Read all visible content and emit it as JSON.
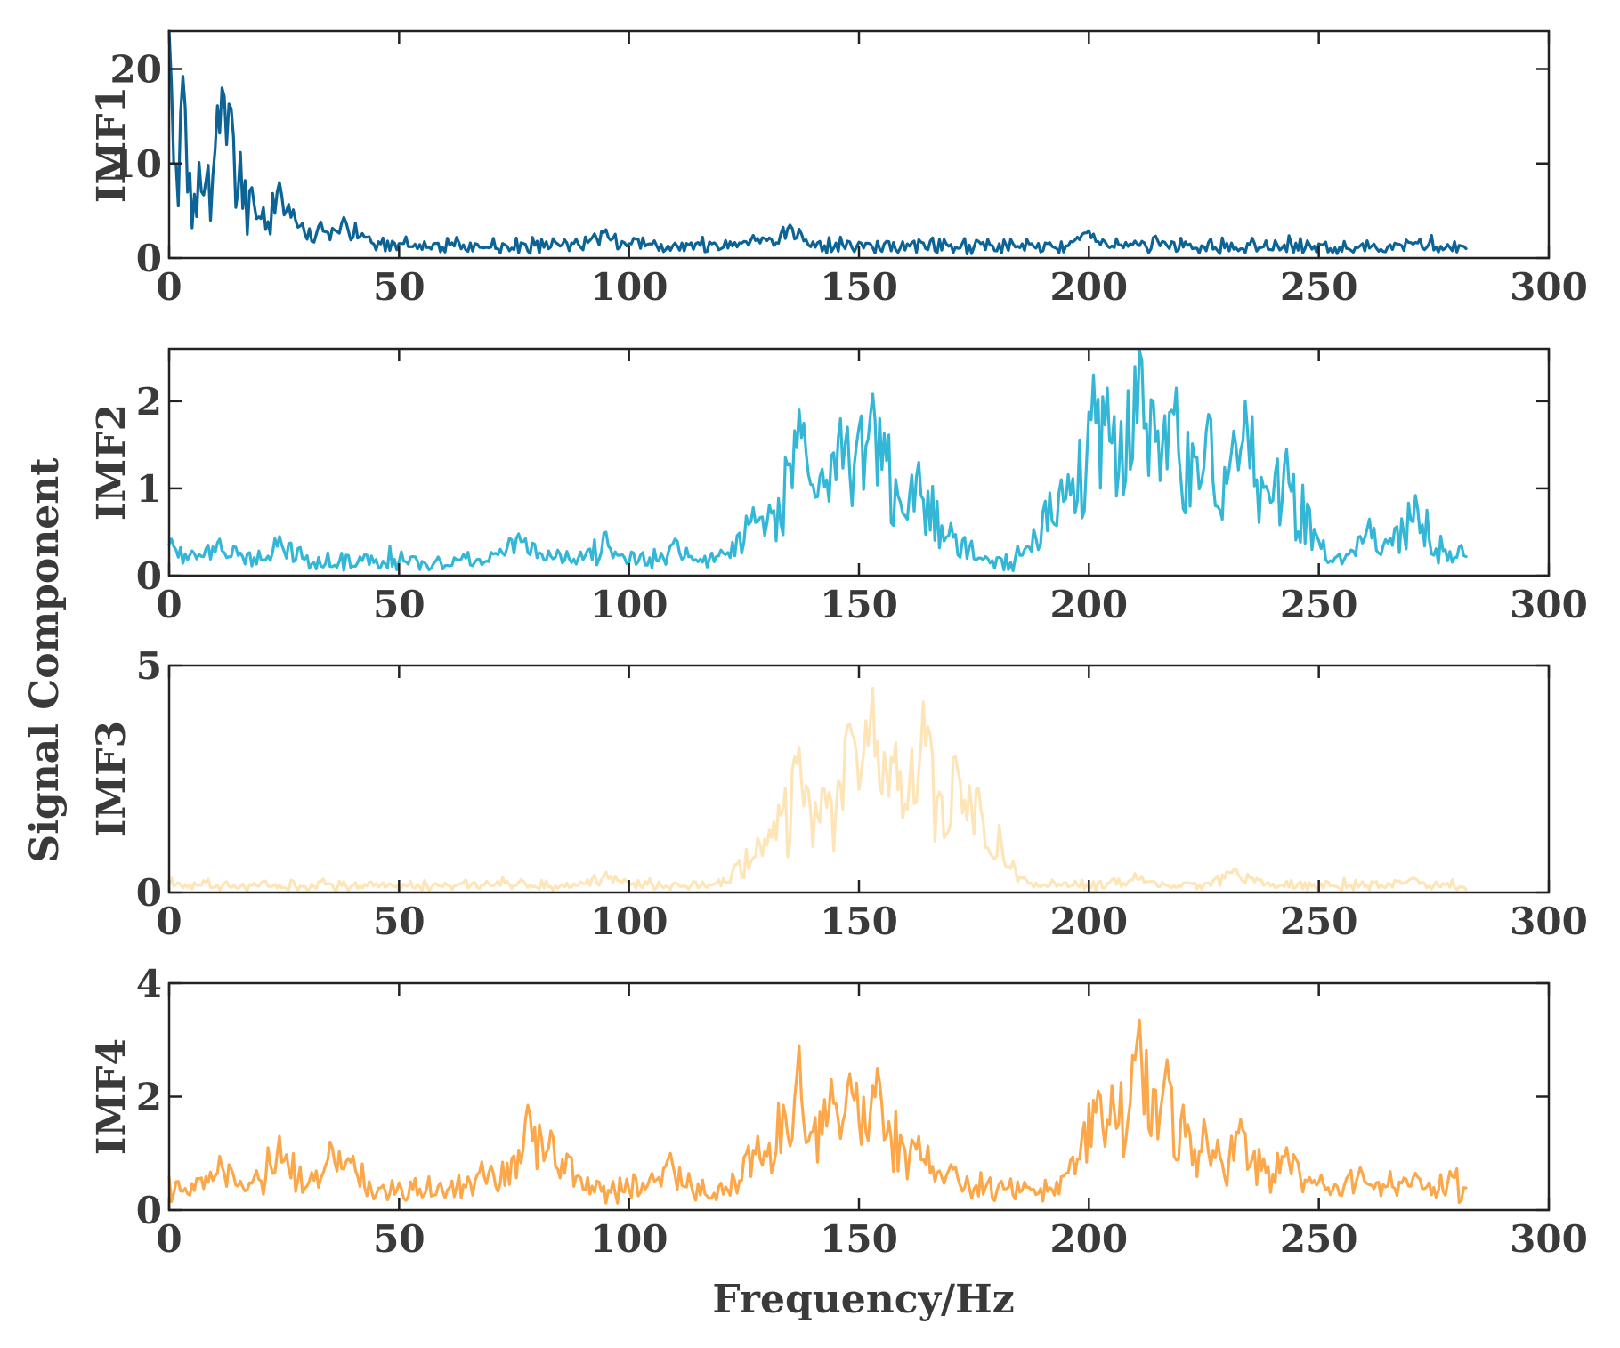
{
  "chart_data": {
    "type": "line",
    "shared_xlabel": "Frequency/Hz",
    "shared_ylabel": "Signal Component",
    "xlim": [
      0,
      300
    ],
    "xticks": [
      0,
      50,
      100,
      150,
      200,
      250,
      300
    ],
    "x_end": 282,
    "panels": [
      {
        "name": "IMF1",
        "ylabel": "IMF1",
        "ylim": [
          0,
          24
        ],
        "yticks": [
          0,
          10,
          20
        ],
        "color": "#0b6396",
        "noise_base": 1.2,
        "noise_level": 0.9,
        "peaks": [
          {
            "x": 0.0,
            "value": 24.0
          },
          {
            "x": 1.0,
            "value": 10.0
          },
          {
            "x": 2.0,
            "value": 5.5
          },
          {
            "x": 5.0,
            "value": 3.2
          },
          {
            "x": 9.0,
            "value": 4.0
          },
          {
            "x": 11.5,
            "value": 18.0
          },
          {
            "x": 12.5,
            "value": 12.0
          },
          {
            "x": 17.0,
            "value": 2.5
          },
          {
            "x": 24.0,
            "value": 8.0
          },
          {
            "x": 25.5,
            "value": 5.0
          },
          {
            "x": 33.0,
            "value": 3.8
          },
          {
            "x": 38.0,
            "value": 4.3
          },
          {
            "x": 42.0,
            "value": 2.6
          },
          {
            "x": 95.0,
            "value": 3.0
          },
          {
            "x": 127.0,
            "value": 2.4
          },
          {
            "x": 135.0,
            "value": 3.5
          },
          {
            "x": 200.0,
            "value": 2.9
          },
          {
            "x": 210.0,
            "value": 1.8
          }
        ]
      },
      {
        "name": "IMF2",
        "ylabel": "IMF2",
        "ylim": [
          0,
          2.6
        ],
        "yticks": [
          0,
          1,
          2
        ],
        "color": "#34b7d6",
        "noise_base": 0.15,
        "noise_level": 0.15,
        "peaks": [
          {
            "x": 0.5,
            "value": 0.42
          },
          {
            "x": 11.0,
            "value": 0.42
          },
          {
            "x": 24.0,
            "value": 0.45
          },
          {
            "x": 76.0,
            "value": 0.48
          },
          {
            "x": 95.0,
            "value": 0.5
          },
          {
            "x": 110.0,
            "value": 0.42
          },
          {
            "x": 127.0,
            "value": 0.78
          },
          {
            "x": 137.0,
            "value": 1.9
          },
          {
            "x": 146.0,
            "value": 1.8
          },
          {
            "x": 150.0,
            "value": 1.7
          },
          {
            "x": 153.0,
            "value": 2.08
          },
          {
            "x": 163.0,
            "value": 1.3
          },
          {
            "x": 170.0,
            "value": 0.6
          },
          {
            "x": 194.0,
            "value": 1.1
          },
          {
            "x": 201.0,
            "value": 2.3
          },
          {
            "x": 204.0,
            "value": 2.15
          },
          {
            "x": 211.0,
            "value": 2.58
          },
          {
            "x": 219.0,
            "value": 2.15
          },
          {
            "x": 226.0,
            "value": 1.85
          },
          {
            "x": 234.0,
            "value": 2.0
          },
          {
            "x": 243.0,
            "value": 1.45
          },
          {
            "x": 261.0,
            "value": 0.65
          },
          {
            "x": 271.0,
            "value": 0.92
          },
          {
            "x": 281.0,
            "value": 0.35
          }
        ]
      },
      {
        "name": "IMF3",
        "ylabel": "IMF3",
        "ylim": [
          0,
          5
        ],
        "yticks": [
          0,
          5
        ],
        "color": "#fde5b8",
        "noise_base": 0.12,
        "noise_level": 0.18,
        "peaks": [
          {
            "x": 95.0,
            "value": 0.45
          },
          {
            "x": 128.0,
            "value": 1.2
          },
          {
            "x": 133.0,
            "value": 1.7
          },
          {
            "x": 137.0,
            "value": 3.2
          },
          {
            "x": 142.0,
            "value": 2.3
          },
          {
            "x": 148.0,
            "value": 3.7
          },
          {
            "x": 153.0,
            "value": 4.5
          },
          {
            "x": 158.0,
            "value": 3.3
          },
          {
            "x": 164.0,
            "value": 4.2
          },
          {
            "x": 171.0,
            "value": 3.0
          },
          {
            "x": 176.0,
            "value": 2.3
          },
          {
            "x": 180.0,
            "value": 0.8
          },
          {
            "x": 210.0,
            "value": 0.42
          },
          {
            "x": 232.0,
            "value": 0.52
          },
          {
            "x": 270.0,
            "value": 0.3
          }
        ]
      },
      {
        "name": "IMF4",
        "ylabel": "IMF4",
        "ylim": [
          0,
          4
        ],
        "yticks": [
          0,
          2,
          4
        ],
        "color": "#fca84a",
        "noise_base": 0.3,
        "noise_level": 0.35,
        "peaks": [
          {
            "x": 11.0,
            "value": 0.95
          },
          {
            "x": 24.0,
            "value": 1.3
          },
          {
            "x": 35.0,
            "value": 1.2
          },
          {
            "x": 40.0,
            "value": 0.95
          },
          {
            "x": 68.0,
            "value": 0.85
          },
          {
            "x": 78.0,
            "value": 1.85
          },
          {
            "x": 83.0,
            "value": 1.4
          },
          {
            "x": 109.0,
            "value": 1.0
          },
          {
            "x": 128.0,
            "value": 1.3
          },
          {
            "x": 137.0,
            "value": 2.9
          },
          {
            "x": 144.0,
            "value": 2.3
          },
          {
            "x": 148.0,
            "value": 2.4
          },
          {
            "x": 154.0,
            "value": 2.5
          },
          {
            "x": 163.0,
            "value": 1.3
          },
          {
            "x": 170.0,
            "value": 0.8
          },
          {
            "x": 198.0,
            "value": 0.9
          },
          {
            "x": 202.0,
            "value": 2.1
          },
          {
            "x": 205.0,
            "value": 2.2
          },
          {
            "x": 211.0,
            "value": 3.35
          },
          {
            "x": 217.0,
            "value": 2.65
          },
          {
            "x": 225.0,
            "value": 1.6
          },
          {
            "x": 233.0,
            "value": 1.6
          },
          {
            "x": 243.0,
            "value": 1.1
          },
          {
            "x": 259.0,
            "value": 0.75
          },
          {
            "x": 271.0,
            "value": 0.65
          }
        ]
      }
    ]
  }
}
